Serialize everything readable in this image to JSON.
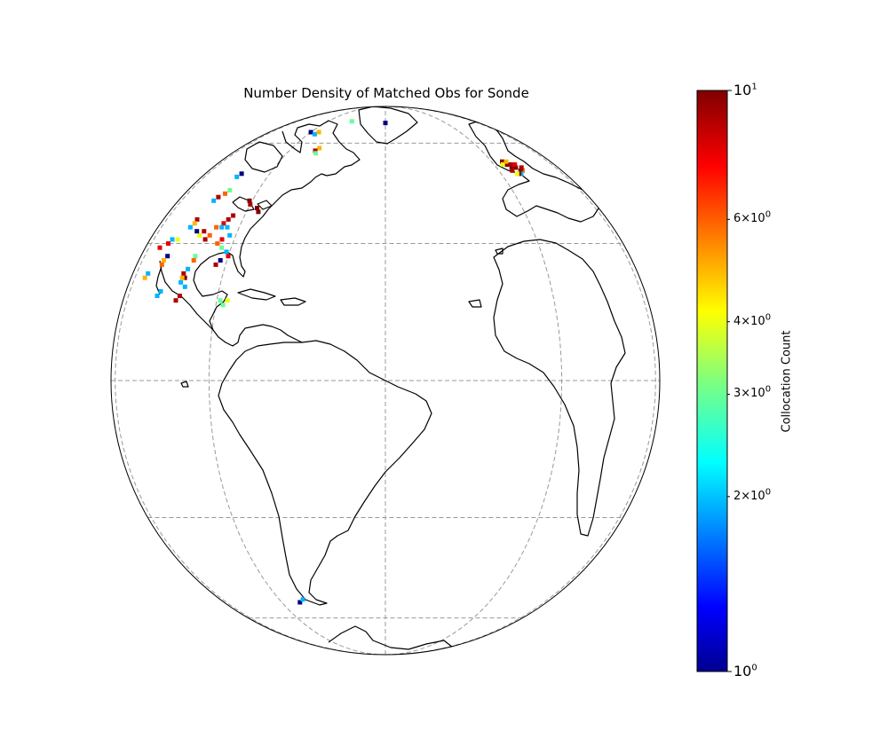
{
  "title": "Number Density of Matched Obs for Sonde",
  "colorbar": {
    "label": "Collocation Count",
    "scale": "log",
    "range": [
      1,
      10
    ],
    "colormap": "jet",
    "ticks": [
      {
        "value": 10,
        "mantissa": "",
        "base": "10",
        "exp": "1",
        "size": "big"
      },
      {
        "value": 6,
        "mantissa": "6×",
        "base": "10",
        "exp": "0",
        "size": "small"
      },
      {
        "value": 4,
        "mantissa": "4×",
        "base": "10",
        "exp": "0",
        "size": "small"
      },
      {
        "value": 3,
        "mantissa": "3×",
        "base": "10",
        "exp": "0",
        "size": "small"
      },
      {
        "value": 2,
        "mantissa": "2×",
        "base": "10",
        "exp": "0",
        "size": "small"
      },
      {
        "value": 1,
        "mantissa": "",
        "base": "10",
        "exp": "0",
        "size": "big"
      }
    ]
  },
  "map": {
    "projection": "orthographic",
    "center": {
      "lon": -40,
      "lat": 0
    },
    "gridlines": {
      "style": "dashed",
      "color": "#999999",
      "lons": [
        -120,
        -80,
        -40,
        0,
        40
      ],
      "lats": [
        -60,
        -30,
        0,
        30,
        60
      ]
    },
    "coastline_color": "#000000",
    "observations": [
      {
        "lon": -77,
        "lat": 39,
        "count": 10
      },
      {
        "lon": -76,
        "lat": 38,
        "count": 10
      },
      {
        "lon": -80,
        "lat": 40,
        "count": 9
      },
      {
        "lon": -81,
        "lat": 41,
        "count": 10
      },
      {
        "lon": -84,
        "lat": 37,
        "count": 9
      },
      {
        "lon": -85,
        "lat": 36,
        "count": 9
      },
      {
        "lon": -86,
        "lat": 35,
        "count": 8
      },
      {
        "lon": -86,
        "lat": 34,
        "count": 2
      },
      {
        "lon": -84,
        "lat": 34,
        "count": 2
      },
      {
        "lon": -88,
        "lat": 34,
        "count": 6
      },
      {
        "lon": -92,
        "lat": 33,
        "count": 9
      },
      {
        "lon": -93,
        "lat": 32,
        "count": 4
      },
      {
        "lon": -89,
        "lat": 32,
        "count": 6
      },
      {
        "lon": -90,
        "lat": 31,
        "count": 9
      },
      {
        "lon": -98,
        "lat": 36,
        "count": 9
      },
      {
        "lon": -98,
        "lat": 35,
        "count": 5
      },
      {
        "lon": -99,
        "lat": 34,
        "count": 2
      },
      {
        "lon": -95,
        "lat": 33,
        "count": 1
      },
      {
        "lon": -102,
        "lat": 31,
        "count": 4
      },
      {
        "lon": -105,
        "lat": 31,
        "count": 2
      },
      {
        "lon": -106,
        "lat": 30,
        "count": 8
      },
      {
        "lon": -110,
        "lat": 29,
        "count": 8
      },
      {
        "lon": -103,
        "lat": 27,
        "count": 1
      },
      {
        "lon": -104,
        "lat": 26,
        "count": 5
      },
      {
        "lon": -104,
        "lat": 25,
        "count": 6
      },
      {
        "lon": -91,
        "lat": 27,
        "count": 3
      },
      {
        "lon": -91,
        "lat": 26,
        "count": 6
      },
      {
        "lon": -92,
        "lat": 24,
        "count": 2
      },
      {
        "lon": -93,
        "lat": 23,
        "count": 9
      },
      {
        "lon": -92,
        "lat": 22,
        "count": 10
      },
      {
        "lon": -93,
        "lat": 22,
        "count": 5
      },
      {
        "lon": -93,
        "lat": 21,
        "count": 2
      },
      {
        "lon": -91,
        "lat": 20,
        "count": 2
      },
      {
        "lon": -83,
        "lat": 25,
        "count": 9
      },
      {
        "lon": -82,
        "lat": 26,
        "count": 1
      },
      {
        "lon": -80,
        "lat": 27,
        "count": 8
      },
      {
        "lon": -81,
        "lat": 28,
        "count": 2
      },
      {
        "lon": -83,
        "lat": 29,
        "count": 3
      },
      {
        "lon": -85,
        "lat": 30,
        "count": 6
      },
      {
        "lon": -84,
        "lat": 31,
        "count": 8
      },
      {
        "lon": -82,
        "lat": 32,
        "count": 2
      },
      {
        "lon": -110,
        "lat": 23,
        "count": 2
      },
      {
        "lon": -111,
        "lat": 22,
        "count": 5
      },
      {
        "lon": -100,
        "lat": 19,
        "count": 2
      },
      {
        "lon": -101,
        "lat": 18,
        "count": 2
      },
      {
        "lon": -92,
        "lat": 18,
        "count": 9
      },
      {
        "lon": -93,
        "lat": 17,
        "count": 9
      },
      {
        "lon": -79,
        "lat": 17,
        "count": 3
      },
      {
        "lon": -78,
        "lat": 16,
        "count": 3
      },
      {
        "lon": -77,
        "lat": 17,
        "count": 4
      },
      {
        "lon": -93,
        "lat": 49,
        "count": 1
      },
      {
        "lon": -94,
        "lat": 48,
        "count": 2
      },
      {
        "lon": -92,
        "lat": 44,
        "count": 3
      },
      {
        "lon": -93,
        "lat": 43,
        "count": 6
      },
      {
        "lon": -95,
        "lat": 42,
        "count": 9
      },
      {
        "lon": -96,
        "lat": 41,
        "count": 2
      },
      {
        "lon": -67,
        "lat": 58,
        "count": 5
      },
      {
        "lon": -68,
        "lat": 57,
        "count": 9
      },
      {
        "lon": -67,
        "lat": 56,
        "count": 3
      },
      {
        "lon": -80,
        "lat": 65,
        "count": 1
      },
      {
        "lon": -76,
        "lat": 64,
        "count": 2
      },
      {
        "lon": -75,
        "lat": 65,
        "count": 5
      },
      {
        "lon": -62,
        "lat": 71,
        "count": 3
      },
      {
        "lon": -40,
        "lat": 70,
        "count": 1
      },
      {
        "lon": 5,
        "lat": 52,
        "count": 9
      },
      {
        "lon": 6,
        "lat": 52,
        "count": 10
      },
      {
        "lon": 7,
        "lat": 51,
        "count": 10
      },
      {
        "lon": 8,
        "lat": 52,
        "count": 9
      },
      {
        "lon": 9,
        "lat": 51,
        "count": 10
      },
      {
        "lon": 10,
        "lat": 52,
        "count": 8
      },
      {
        "lon": 11,
        "lat": 50,
        "count": 6
      },
      {
        "lon": 10,
        "lat": 50,
        "count": 10
      },
      {
        "lon": 9,
        "lat": 49,
        "count": 2
      },
      {
        "lon": 8,
        "lat": 49,
        "count": 10
      },
      {
        "lon": 7,
        "lat": 49,
        "count": 4
      },
      {
        "lon": 6,
        "lat": 50,
        "count": 9
      },
      {
        "lon": 5,
        "lat": 53,
        "count": 10
      },
      {
        "lon": 4,
        "lat": 52,
        "count": 4
      },
      {
        "lon": 7,
        "lat": 53,
        "count": 5
      },
      {
        "lon": 12,
        "lat": 51,
        "count": 9
      },
      {
        "lon": -72,
        "lat": -54,
        "count": 1
      },
      {
        "lon": -70,
        "lat": -53,
        "count": 2
      }
    ]
  }
}
